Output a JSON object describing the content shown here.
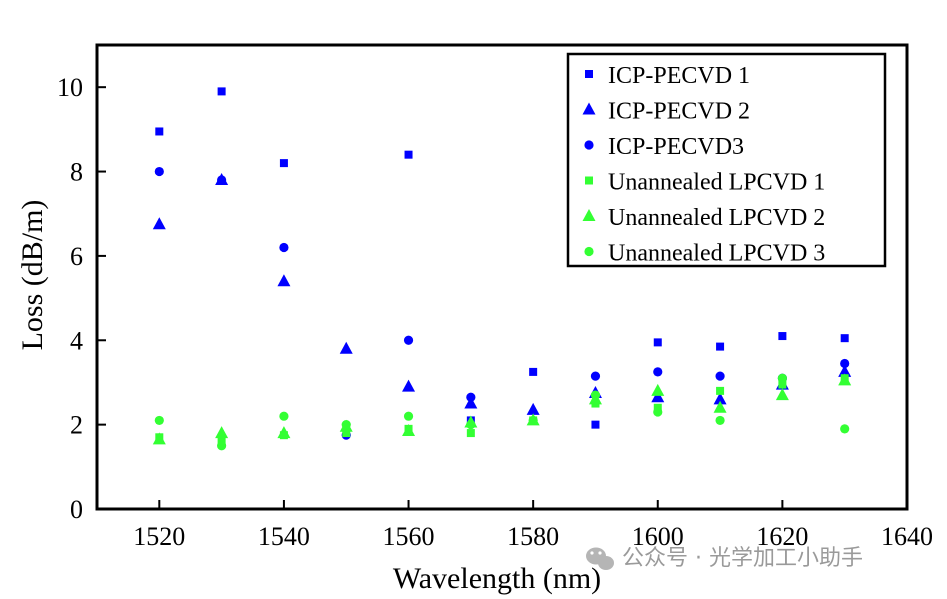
{
  "chart_data": {
    "type": "scatter",
    "title": "",
    "xlabel": "Wavelength  (nm)",
    "ylabel": "Loss  (dB/m)",
    "xlim": [
      1510,
      1640
    ],
    "ylim": [
      0,
      11
    ],
    "xticks": [
      1520,
      1540,
      1560,
      1580,
      1600,
      1620,
      1640
    ],
    "yticks": [
      0,
      2,
      4,
      6,
      8,
      10
    ],
    "grid": false,
    "legend_position": "top-right",
    "series": [
      {
        "name": "ICP-PECVD 1",
        "marker": "square",
        "color": "#0000FF",
        "points": [
          [
            1520,
            8.95
          ],
          [
            1530,
            9.9
          ],
          [
            1540,
            8.2
          ],
          [
            1560,
            8.4
          ],
          [
            1570,
            2.1
          ],
          [
            1580,
            3.25
          ],
          [
            1590,
            2.0
          ],
          [
            1600,
            3.95
          ],
          [
            1610,
            3.85
          ],
          [
            1620,
            4.1
          ],
          [
            1630,
            4.05
          ]
        ]
      },
      {
        "name": "ICP-PECVD 2",
        "marker": "triangle",
        "color": "#0000FF",
        "points": [
          [
            1520,
            6.75
          ],
          [
            1530,
            7.8
          ],
          [
            1540,
            5.4
          ],
          [
            1550,
            3.8
          ],
          [
            1560,
            2.9
          ],
          [
            1570,
            2.5
          ],
          [
            1580,
            2.35
          ],
          [
            1590,
            2.75
          ],
          [
            1600,
            2.65
          ],
          [
            1610,
            2.6
          ],
          [
            1620,
            2.95
          ],
          [
            1630,
            3.25
          ]
        ]
      },
      {
        "name": "ICP-PECVD3",
        "marker": "circle",
        "color": "#0000FF",
        "points": [
          [
            1520,
            8.0
          ],
          [
            1530,
            7.8
          ],
          [
            1540,
            6.2
          ],
          [
            1550,
            1.75
          ],
          [
            1560,
            4.0
          ],
          [
            1570,
            2.65
          ],
          [
            1590,
            3.15
          ],
          [
            1600,
            3.25
          ],
          [
            1610,
            3.15
          ],
          [
            1620,
            3.1
          ],
          [
            1630,
            3.45
          ]
        ]
      },
      {
        "name": "Unannealed LPCVD 1",
        "marker": "square",
        "color": "#33FF33",
        "points": [
          [
            1520,
            1.7
          ],
          [
            1530,
            1.6
          ],
          [
            1540,
            1.75
          ],
          [
            1550,
            1.8
          ],
          [
            1560,
            1.9
          ],
          [
            1570,
            1.8
          ],
          [
            1580,
            2.1
          ],
          [
            1590,
            2.5
          ],
          [
            1600,
            2.4
          ],
          [
            1610,
            2.8
          ],
          [
            1620,
            2.95
          ],
          [
            1630,
            3.1
          ]
        ]
      },
      {
        "name": "Unannealed LPCVD 2",
        "marker": "triangle",
        "color": "#33FF33",
        "points": [
          [
            1520,
            1.65
          ],
          [
            1530,
            1.8
          ],
          [
            1540,
            1.8
          ],
          [
            1550,
            1.95
          ],
          [
            1560,
            1.85
          ],
          [
            1570,
            2.05
          ],
          [
            1580,
            2.1
          ],
          [
            1590,
            2.6
          ],
          [
            1600,
            2.8
          ],
          [
            1610,
            2.4
          ],
          [
            1620,
            2.7
          ],
          [
            1630,
            3.05
          ]
        ]
      },
      {
        "name": "Unannealed LPCVD 3",
        "marker": "circle",
        "color": "#33FF33",
        "points": [
          [
            1520,
            2.1
          ],
          [
            1530,
            1.5
          ],
          [
            1540,
            2.2
          ],
          [
            1550,
            2.0
          ],
          [
            1560,
            2.2
          ],
          [
            1570,
            2.0
          ],
          [
            1580,
            2.1
          ],
          [
            1590,
            2.7
          ],
          [
            1600,
            2.3
          ],
          [
            1610,
            2.1
          ],
          [
            1620,
            3.1
          ],
          [
            1630,
            1.9
          ]
        ]
      }
    ]
  },
  "watermark": {
    "text": "公众号 · 光学加工小助手",
    "icon": "wechat-icon"
  }
}
